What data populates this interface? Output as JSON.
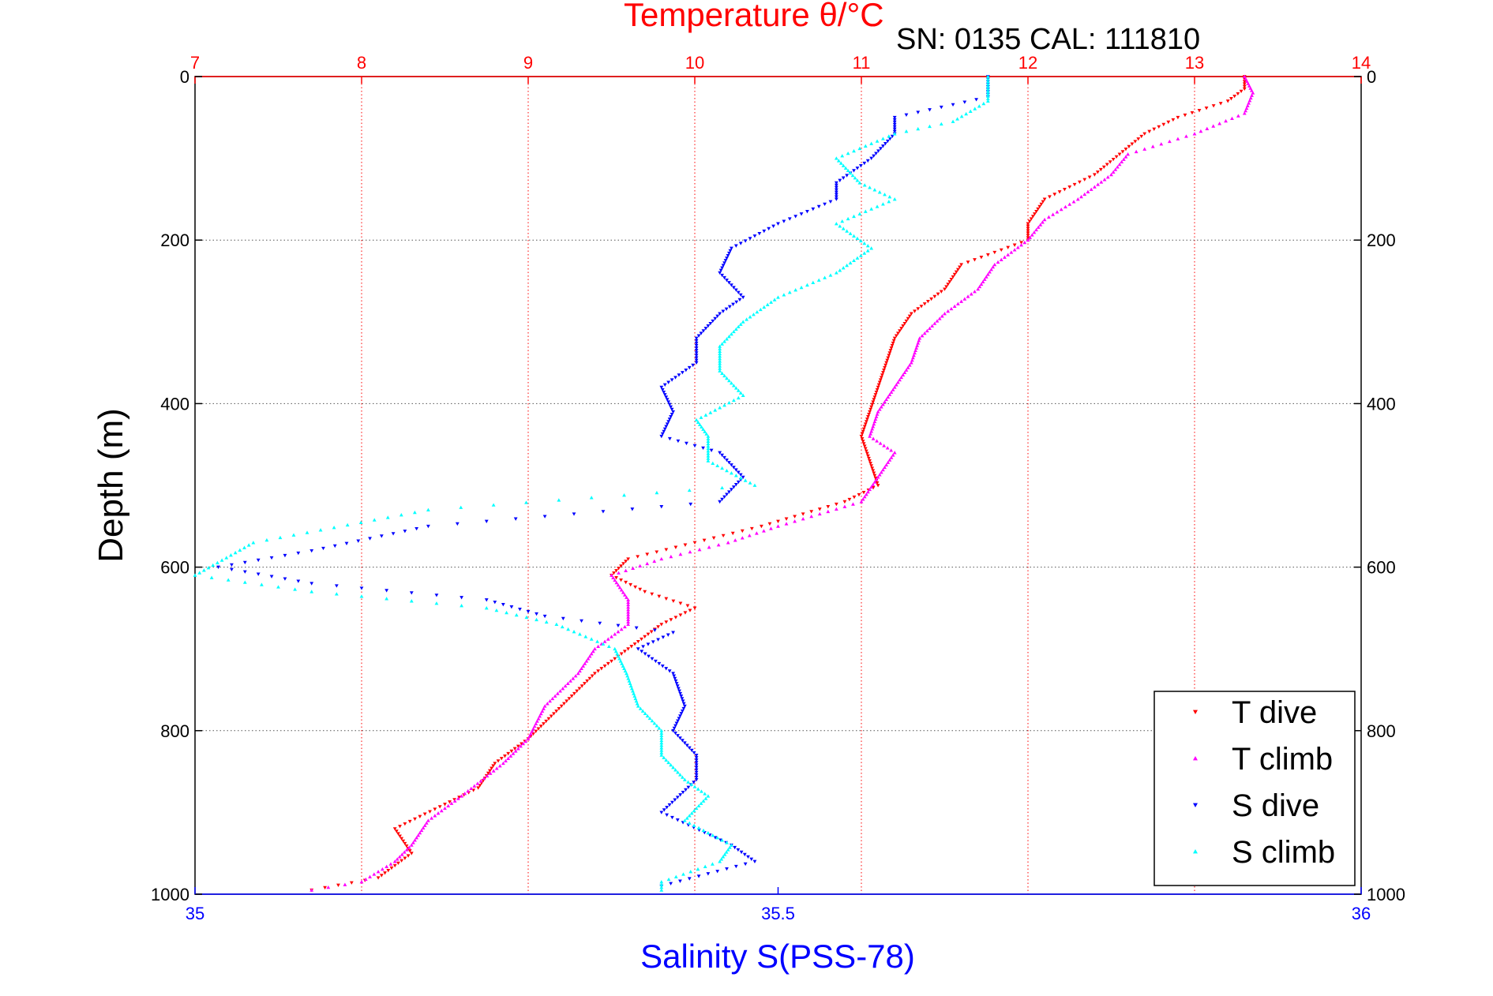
{
  "chart_data": {
    "type": "scatter",
    "title": "Temperature θ/°C",
    "subtitle": "SN: 0135  CAL: 111810",
    "xlabel_top": "Temperature θ/°C",
    "xlabel_bottom": "Salinity S(PSS-78)",
    "ylabel": "Depth (m)",
    "ylim": [
      0,
      1000
    ],
    "y_reversed": true,
    "temperature_xlim": [
      7,
      14
    ],
    "salinity_xlim": [
      35,
      36
    ],
    "top_ticks": [
      7,
      8,
      9,
      10,
      11,
      12,
      13,
      14
    ],
    "bottom_ticks": [
      35,
      35.5,
      36
    ],
    "bottom_tick_labels": [
      "35",
      "35.5",
      "36"
    ],
    "y_ticks": [
      0,
      200,
      400,
      600,
      800,
      1000
    ],
    "grid": true,
    "legend_position": "bottom-right",
    "series": [
      {
        "name": "T dive",
        "axis": "temperature",
        "color": "#ff0000",
        "marker": "triangle-down",
        "points": [
          [
            13.3,
            0
          ],
          [
            13.3,
            15
          ],
          [
            13.2,
            30
          ],
          [
            12.9,
            50
          ],
          [
            12.7,
            70
          ],
          [
            12.55,
            95
          ],
          [
            12.4,
            120
          ],
          [
            12.1,
            150
          ],
          [
            12.0,
            180
          ],
          [
            12.0,
            200
          ],
          [
            11.6,
            230
          ],
          [
            11.5,
            260
          ],
          [
            11.3,
            290
          ],
          [
            11.2,
            320
          ],
          [
            11.15,
            350
          ],
          [
            11.1,
            380
          ],
          [
            11.05,
            410
          ],
          [
            11.0,
            440
          ],
          [
            11.05,
            470
          ],
          [
            11.1,
            500
          ],
          [
            10.9,
            520
          ],
          [
            10.4,
            550
          ],
          [
            10.0,
            570
          ],
          [
            9.6,
            590
          ],
          [
            9.5,
            610
          ],
          [
            9.7,
            630
          ],
          [
            10.0,
            650
          ],
          [
            9.8,
            670
          ],
          [
            9.6,
            700
          ],
          [
            9.4,
            730
          ],
          [
            9.2,
            770
          ],
          [
            9.0,
            810
          ],
          [
            8.8,
            840
          ],
          [
            8.7,
            870
          ],
          [
            8.5,
            890
          ],
          [
            8.2,
            920
          ],
          [
            8.3,
            950
          ],
          [
            8.1,
            980
          ],
          [
            7.7,
            995
          ]
        ]
      },
      {
        "name": "T climb",
        "axis": "temperature",
        "color": "#ff00ff",
        "marker": "triangle-up",
        "points": [
          [
            13.3,
            0
          ],
          [
            13.35,
            20
          ],
          [
            13.3,
            45
          ],
          [
            13.0,
            70
          ],
          [
            12.6,
            95
          ],
          [
            12.5,
            120
          ],
          [
            12.3,
            150
          ],
          [
            12.1,
            175
          ],
          [
            12.0,
            200
          ],
          [
            11.8,
            230
          ],
          [
            11.7,
            260
          ],
          [
            11.5,
            290
          ],
          [
            11.35,
            320
          ],
          [
            11.3,
            350
          ],
          [
            11.2,
            380
          ],
          [
            11.1,
            410
          ],
          [
            11.05,
            440
          ],
          [
            11.2,
            460
          ],
          [
            11.1,
            490
          ],
          [
            11.0,
            520
          ],
          [
            10.5,
            550
          ],
          [
            10.2,
            570
          ],
          [
            9.8,
            590
          ],
          [
            9.5,
            610
          ],
          [
            9.6,
            640
          ],
          [
            9.6,
            670
          ],
          [
            9.4,
            700
          ],
          [
            9.3,
            730
          ],
          [
            9.1,
            770
          ],
          [
            9.0,
            810
          ],
          [
            8.85,
            840
          ],
          [
            8.6,
            880
          ],
          [
            8.4,
            910
          ],
          [
            8.3,
            940
          ],
          [
            8.2,
            960
          ],
          [
            8.0,
            985
          ],
          [
            7.7,
            995
          ]
        ]
      },
      {
        "name": "S dive",
        "axis": "salinity",
        "color": "#0000ff",
        "marker": "triangle-down",
        "points": [
          [
            35.68,
            0
          ],
          [
            35.68,
            25
          ],
          [
            35.6,
            50
          ],
          [
            35.6,
            70
          ],
          [
            35.58,
            100
          ],
          [
            35.55,
            130
          ],
          [
            35.55,
            150
          ],
          [
            35.5,
            180
          ],
          [
            35.46,
            210
          ],
          [
            35.45,
            240
          ],
          [
            35.47,
            270
          ],
          [
            35.45,
            290
          ],
          [
            35.43,
            320
          ],
          [
            35.43,
            350
          ],
          [
            35.4,
            380
          ],
          [
            35.41,
            410
          ],
          [
            35.4,
            440
          ],
          [
            35.45,
            460
          ],
          [
            35.47,
            490
          ],
          [
            35.45,
            520
          ],
          [
            35.2,
            550
          ],
          [
            35.1,
            580
          ],
          [
            35.02,
            600
          ],
          [
            35.1,
            620
          ],
          [
            35.25,
            640
          ],
          [
            35.3,
            660
          ],
          [
            35.41,
            680
          ],
          [
            35.38,
            700
          ],
          [
            35.41,
            730
          ],
          [
            35.42,
            770
          ],
          [
            35.41,
            800
          ],
          [
            35.43,
            830
          ],
          [
            35.43,
            860
          ],
          [
            35.4,
            900
          ],
          [
            35.46,
            940
          ],
          [
            35.48,
            960
          ],
          [
            35.4,
            990
          ]
        ]
      },
      {
        "name": "S climb",
        "axis": "salinity",
        "color": "#00ffff",
        "marker": "triangle-up",
        "points": [
          [
            35.68,
            0
          ],
          [
            35.68,
            30
          ],
          [
            35.65,
            55
          ],
          [
            35.6,
            70
          ],
          [
            35.55,
            100
          ],
          [
            35.57,
            130
          ],
          [
            35.6,
            150
          ],
          [
            35.55,
            180
          ],
          [
            35.58,
            210
          ],
          [
            35.55,
            240
          ],
          [
            35.5,
            270
          ],
          [
            35.47,
            300
          ],
          [
            35.45,
            330
          ],
          [
            35.45,
            360
          ],
          [
            35.47,
            390
          ],
          [
            35.43,
            420
          ],
          [
            35.44,
            440
          ],
          [
            35.44,
            470
          ],
          [
            35.48,
            500
          ],
          [
            35.2,
            530
          ],
          [
            35.05,
            570
          ],
          [
            35.0,
            610
          ],
          [
            35.1,
            630
          ],
          [
            35.25,
            650
          ],
          [
            35.31,
            670
          ],
          [
            35.36,
            700
          ],
          [
            35.37,
            730
          ],
          [
            35.38,
            770
          ],
          [
            35.4,
            800
          ],
          [
            35.4,
            830
          ],
          [
            35.42,
            860
          ],
          [
            35.44,
            880
          ],
          [
            35.42,
            910
          ],
          [
            35.46,
            940
          ],
          [
            35.45,
            960
          ],
          [
            35.4,
            985
          ],
          [
            35.4,
            995
          ]
        ]
      }
    ]
  }
}
